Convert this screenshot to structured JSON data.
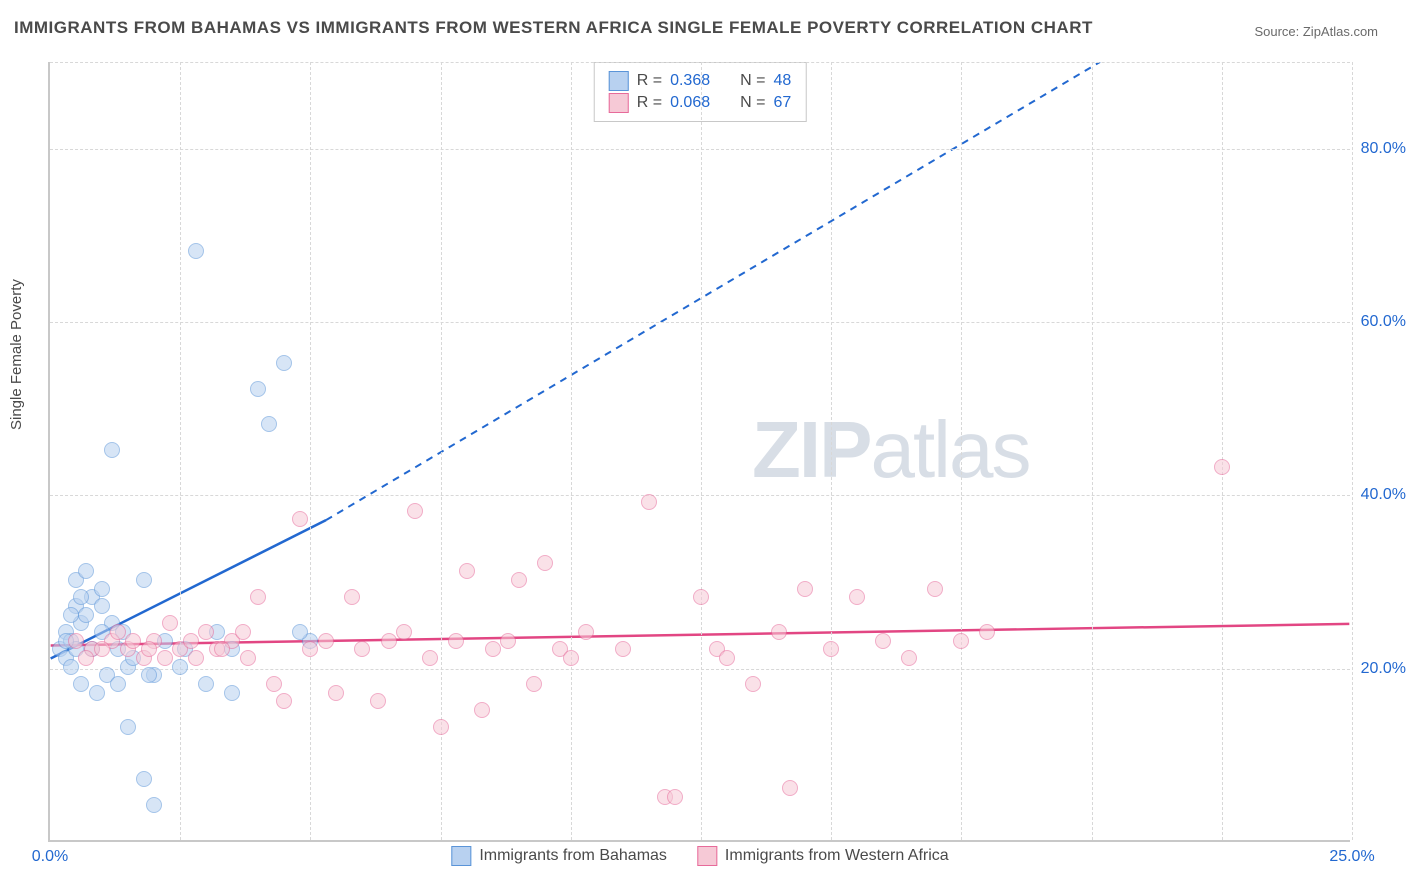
{
  "title": "IMMIGRANTS FROM BAHAMAS VS IMMIGRANTS FROM WESTERN AFRICA SINGLE FEMALE POVERTY CORRELATION CHART",
  "source_label": "Source: ZipAtlas.com",
  "y_axis_label": "Single Female Poverty",
  "watermark": "ZIPatlas",
  "chart": {
    "type": "scatter",
    "xlim": [
      0,
      25
    ],
    "ylim": [
      0,
      90
    ],
    "x_ticks": [
      0.0,
      25.0
    ],
    "x_tick_labels": [
      "0.0%",
      "25.0%"
    ],
    "y_ticks": [
      20.0,
      40.0,
      60.0,
      80.0
    ],
    "y_tick_labels": [
      "20.0%",
      "40.0%",
      "60.0%",
      "80.0%"
    ],
    "x_minor_grid": [
      2.5,
      5.0,
      7.5,
      10.0,
      12.5,
      15.0,
      17.5,
      20.0,
      22.5
    ],
    "background_color": "#ffffff",
    "grid_color": "#d8d8d8",
    "axis_color": "#c8c8c8",
    "tick_label_color": "#2268d0",
    "marker_radius": 8,
    "marker_stroke_width": 1.5,
    "series": [
      {
        "name": "Immigrants from Bahamas",
        "fill_color": "#b8d1f0",
        "stroke_color": "#5a94d8",
        "fill_opacity": 0.55,
        "R": "0.368",
        "N": "48",
        "trend": {
          "x1": 0,
          "y1": 21,
          "x2": 5.3,
          "y2": 37,
          "x2_dash": 20.2,
          "y2_dash": 90,
          "color": "#2268d0",
          "width": 2.5
        },
        "points": [
          [
            0.2,
            22
          ],
          [
            0.3,
            24
          ],
          [
            0.4,
            23
          ],
          [
            0.5,
            27
          ],
          [
            0.6,
            25
          ],
          [
            0.3,
            21
          ],
          [
            0.5,
            22
          ],
          [
            0.7,
            26
          ],
          [
            0.8,
            28
          ],
          [
            1.0,
            29
          ],
          [
            0.4,
            20
          ],
          [
            0.6,
            18
          ],
          [
            0.9,
            17
          ],
          [
            1.1,
            19
          ],
          [
            1.3,
            18
          ],
          [
            1.5,
            20
          ],
          [
            0.5,
            30
          ],
          [
            0.7,
            31
          ],
          [
            1.0,
            27
          ],
          [
            1.2,
            25
          ],
          [
            1.4,
            24
          ],
          [
            0.3,
            23
          ],
          [
            2.0,
            19
          ],
          [
            2.5,
            20
          ],
          [
            3.0,
            18
          ],
          [
            3.5,
            17
          ],
          [
            1.2,
            45
          ],
          [
            1.8,
            30
          ],
          [
            2.2,
            23
          ],
          [
            2.6,
            22
          ],
          [
            3.2,
            24
          ],
          [
            0.4,
            26
          ],
          [
            0.6,
            28
          ],
          [
            4.5,
            55
          ],
          [
            5.0,
            23
          ],
          [
            2.8,
            68
          ],
          [
            4.0,
            52
          ],
          [
            4.2,
            48
          ],
          [
            1.5,
            13
          ],
          [
            1.8,
            7
          ],
          [
            2.0,
            4
          ],
          [
            0.8,
            22
          ],
          [
            1.0,
            24
          ],
          [
            1.3,
            22
          ],
          [
            1.6,
            21
          ],
          [
            1.9,
            19
          ],
          [
            4.8,
            24
          ],
          [
            3.5,
            22
          ]
        ]
      },
      {
        "name": "Immigrants from Western Africa",
        "fill_color": "#f6c9d6",
        "stroke_color": "#e76a9a",
        "fill_opacity": 0.55,
        "R": "0.068",
        "N": "67",
        "trend": {
          "x1": 0,
          "y1": 22.5,
          "x2": 25,
          "y2": 25,
          "color": "#e24683",
          "width": 2.5
        },
        "points": [
          [
            0.8,
            22
          ],
          [
            1.2,
            23
          ],
          [
            1.5,
            22
          ],
          [
            1.8,
            21
          ],
          [
            2.0,
            23
          ],
          [
            2.3,
            25
          ],
          [
            2.5,
            22
          ],
          [
            2.8,
            21
          ],
          [
            3.0,
            24
          ],
          [
            3.2,
            22
          ],
          [
            3.5,
            23
          ],
          [
            3.8,
            21
          ],
          [
            4.0,
            28
          ],
          [
            4.3,
            18
          ],
          [
            4.5,
            16
          ],
          [
            4.8,
            37
          ],
          [
            5.0,
            22
          ],
          [
            5.3,
            23
          ],
          [
            5.5,
            17
          ],
          [
            5.8,
            28
          ],
          [
            6.0,
            22
          ],
          [
            6.3,
            16
          ],
          [
            6.5,
            23
          ],
          [
            6.8,
            24
          ],
          [
            7.0,
            38
          ],
          [
            7.3,
            21
          ],
          [
            7.5,
            13
          ],
          [
            7.8,
            23
          ],
          [
            8.0,
            31
          ],
          [
            8.3,
            15
          ],
          [
            8.5,
            22
          ],
          [
            8.8,
            23
          ],
          [
            9.0,
            30
          ],
          [
            9.3,
            18
          ],
          [
            9.5,
            32
          ],
          [
            9.8,
            22
          ],
          [
            10.0,
            21
          ],
          [
            10.3,
            24
          ],
          [
            11.0,
            22
          ],
          [
            11.5,
            39
          ],
          [
            11.8,
            5
          ],
          [
            12.0,
            5
          ],
          [
            12.5,
            28
          ],
          [
            12.8,
            22
          ],
          [
            13.0,
            21
          ],
          [
            13.5,
            18
          ],
          [
            14.0,
            24
          ],
          [
            14.5,
            29
          ],
          [
            15.0,
            22
          ],
          [
            15.5,
            28
          ],
          [
            16.0,
            23
          ],
          [
            16.5,
            21
          ],
          [
            14.2,
            6
          ],
          [
            17.0,
            29
          ],
          [
            17.5,
            23
          ],
          [
            18.0,
            24
          ],
          [
            22.5,
            43
          ],
          [
            0.5,
            23
          ],
          [
            0.7,
            21
          ],
          [
            1.0,
            22
          ],
          [
            1.3,
            24
          ],
          [
            1.6,
            23
          ],
          [
            1.9,
            22
          ],
          [
            2.2,
            21
          ],
          [
            2.7,
            23
          ],
          [
            3.3,
            22
          ],
          [
            3.7,
            24
          ]
        ]
      }
    ],
    "bottom_legend": [
      {
        "swatch_fill": "#b8d1f0",
        "swatch_stroke": "#5a94d8",
        "label": "Immigrants from Bahamas"
      },
      {
        "swatch_fill": "#f6c9d6",
        "swatch_stroke": "#e76a9a",
        "label": "Immigrants from Western Africa"
      }
    ]
  }
}
